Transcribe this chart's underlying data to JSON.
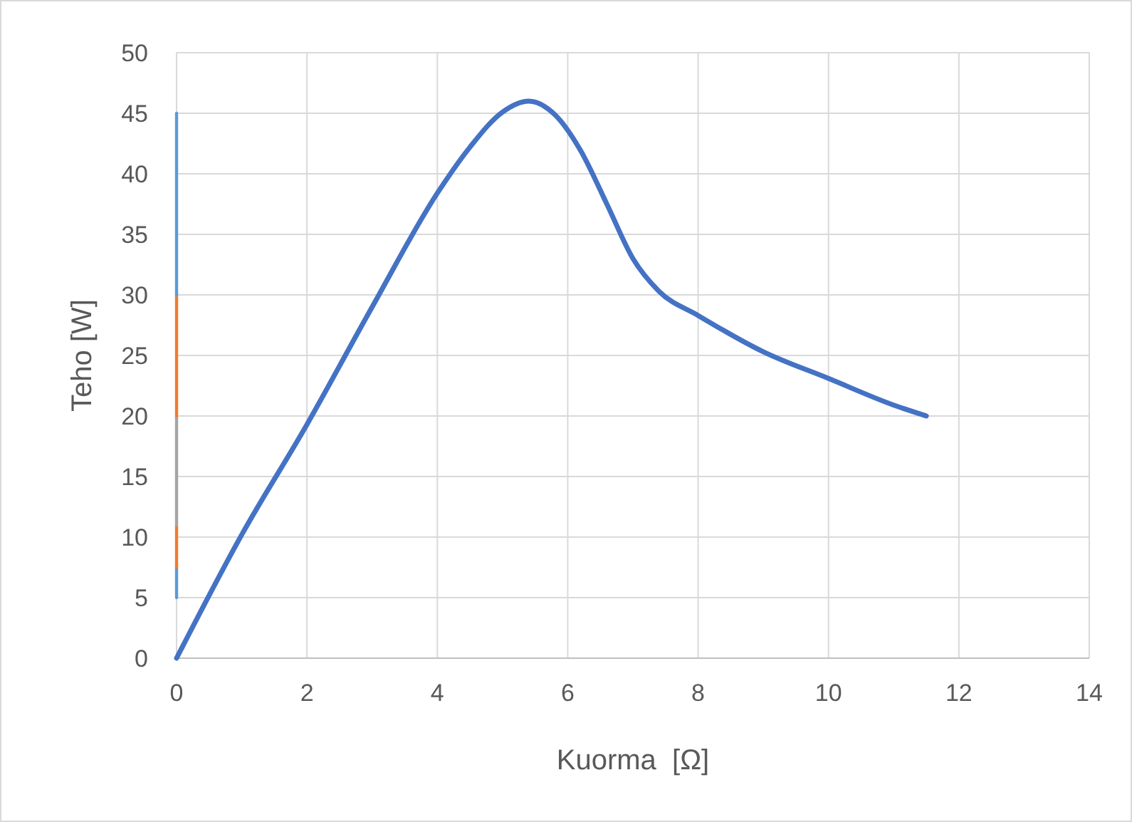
{
  "chart_data": {
    "type": "line",
    "xlabel": "Kuorma  [Ω]",
    "ylabel": "Teho [W]",
    "xlim": [
      0,
      14
    ],
    "ylim": [
      0,
      50
    ],
    "xticks": [
      0,
      2,
      4,
      6,
      8,
      10,
      12,
      14
    ],
    "yticks": [
      0,
      5,
      10,
      15,
      20,
      25,
      30,
      35,
      40,
      45,
      50
    ],
    "grid": true,
    "series": [
      {
        "color": "#5b9bd5",
        "x": [
          0,
          0
        ],
        "values": [
          5,
          7.5
        ]
      },
      {
        "color": "#ed7d31",
        "x": [
          0,
          0
        ],
        "values": [
          7.5,
          11
        ]
      },
      {
        "color": "#a5a5a5",
        "x": [
          0,
          0
        ],
        "values": [
          11,
          20
        ]
      },
      {
        "color": "#ed7d31",
        "x": [
          0,
          0
        ],
        "values": [
          20,
          30
        ]
      },
      {
        "color": "#5b9bd5",
        "x": [
          0,
          0
        ],
        "values": [
          30,
          45
        ]
      },
      {
        "color": "#4472c4",
        "x": [
          0,
          1,
          2,
          3,
          4,
          4.5,
          5,
          5.4,
          5.8,
          6.2,
          6.6,
          7,
          7.4,
          8,
          9,
          10,
          11,
          11.5
        ],
        "values": [
          0,
          10.2,
          19.3,
          29,
          38.4,
          42.2,
          45.1,
          46,
          44.9,
          41.9,
          37.5,
          33,
          30.3,
          28.3,
          25.3,
          23.1,
          20.9,
          20
        ]
      }
    ]
  }
}
